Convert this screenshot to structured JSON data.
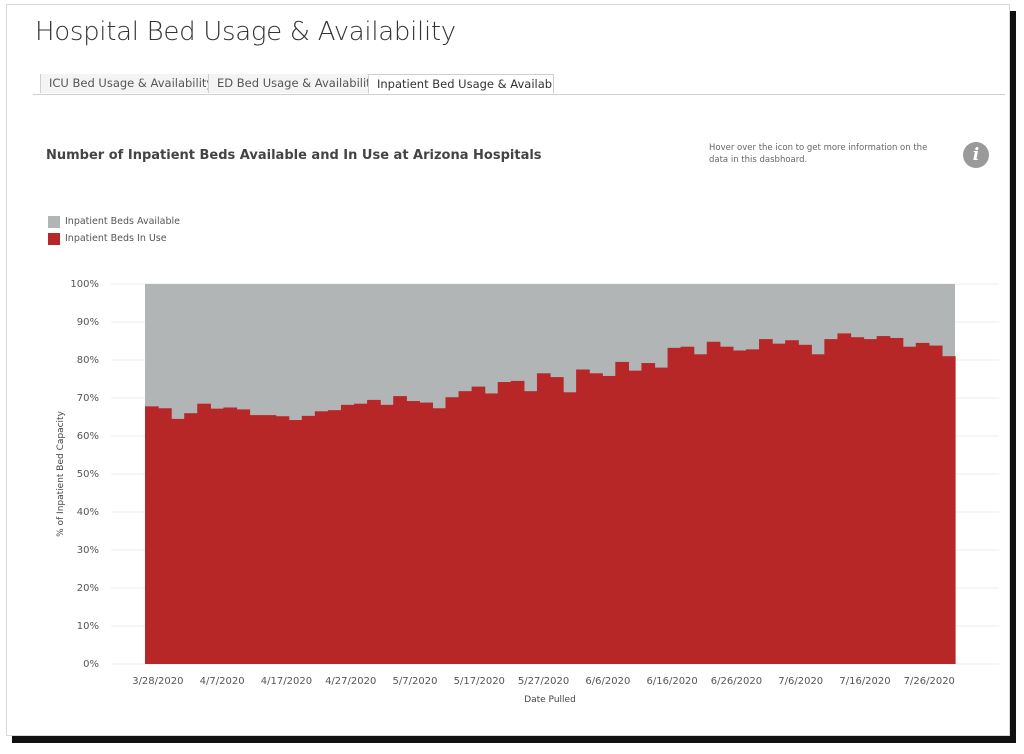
{
  "page": {
    "title": "Hospital Bed Usage & Availability"
  },
  "tabs": [
    {
      "label": "ICU Bed Usage & Availability",
      "active": false
    },
    {
      "label": "ED Bed Usage & Availability",
      "active": false
    },
    {
      "label": "Inpatient Bed Usage & Availabi...",
      "active": true
    }
  ],
  "note": "Hover over the icon to get more information on the data in this dasbhoard.",
  "info_icon": {
    "glyph": "i",
    "icon": "info-icon",
    "color": "#9a9a9a"
  },
  "colors": {
    "available": "#b2b5b6",
    "in_use": "#b72727"
  },
  "chart_data": {
    "type": "area",
    "title": "Number of Inpatient Beds Available and In Use at Arizona Hospitals",
    "xlabel": "Date Pulled",
    "ylabel": "% of Inpatient Bed Capacity",
    "ylim": [
      0,
      100
    ],
    "yticks": [
      "0%",
      "10%",
      "20%",
      "30%",
      "40%",
      "50%",
      "60%",
      "70%",
      "80%",
      "90%",
      "100%"
    ],
    "xticks": [
      "3/28/2020",
      "4/7/2020",
      "4/17/2020",
      "4/27/2020",
      "5/7/2020",
      "5/17/2020",
      "5/27/2020",
      "6/6/2020",
      "6/16/2020",
      "6/26/2020",
      "7/6/2020",
      "7/16/2020",
      "7/26/2020"
    ],
    "legend_position": "top-left",
    "grid": true,
    "stacked": true,
    "x_start": "3/26/2020",
    "x_end": "7/30/2020",
    "series": [
      {
        "name": "Inpatient Beds Available",
        "color": "#b2b5b6",
        "values": "remainder to 100%"
      },
      {
        "name": "Inpatient Beds In Use",
        "color": "#b72727",
        "values": [
          67.8,
          67.3,
          64.5,
          66.0,
          68.5,
          67.2,
          67.5,
          67.0,
          65.5,
          65.5,
          65.2,
          64.2,
          65.3,
          66.5,
          66.8,
          68.2,
          68.5,
          69.5,
          68.2,
          70.5,
          69.2,
          68.8,
          67.3,
          70.2,
          71.8,
          73.0,
          71.2,
          74.2,
          74.5,
          71.8,
          76.5,
          75.5,
          71.5,
          77.5,
          76.5,
          75.8,
          79.5,
          77.2,
          79.2,
          78.0,
          83.2,
          83.5,
          81.5,
          84.8,
          83.5,
          82.5,
          82.8,
          85.5,
          84.3,
          85.2,
          84.0,
          81.5,
          85.5,
          87.0,
          86.0,
          85.5,
          86.3,
          85.8,
          83.5,
          84.5,
          83.8,
          81.0
        ]
      }
    ]
  }
}
